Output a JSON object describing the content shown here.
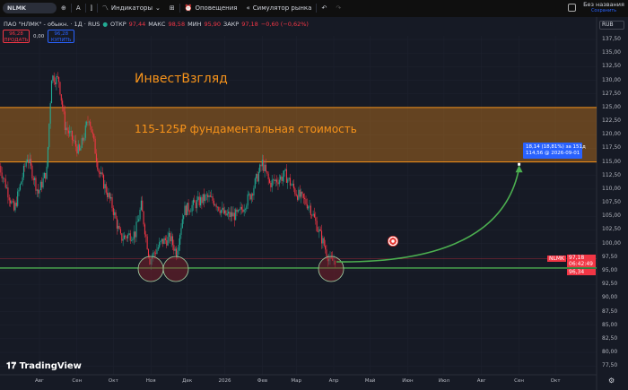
{
  "toolbar": {
    "symbol": "NLMK",
    "indicators": "Индикаторы",
    "alerts": "Оповещения",
    "replay": "Симулятор рынка",
    "layout_name": "Без названия",
    "save": "Сохранить"
  },
  "legend": {
    "title": "ПАО \"НЛМК\" - обыкн. · 1Д · RUS",
    "open_l": "ОТКР",
    "open": "97,44",
    "high_l": "МАКС",
    "high": "98,58",
    "low_l": "МИН",
    "low": "95,90",
    "close_l": "ЗАКР",
    "close": "97,18",
    "change": "−0,60 (−0,62%)"
  },
  "trade": {
    "sell_price": "96,28",
    "sell": "ПРОДАТЬ",
    "spread": "0,00",
    "buy_price": "96,28",
    "buy": "КУПИТЬ"
  },
  "currency": "RUB",
  "price_axis": [
    "137,50",
    "135,00",
    "132,50",
    "130,00",
    "127,50",
    "125,00",
    "122,50",
    "120,00",
    "117,50",
    "115,00",
    "112,50",
    "110,00",
    "107,50",
    "105,00",
    "102,50",
    "100,00",
    "97,50",
    "95,00",
    "92,50",
    "90,00",
    "87,50",
    "85,00",
    "82,50",
    "80,00",
    "77,50"
  ],
  "time_axis": [
    {
      "label": "Авг",
      "date": "2025-08-01"
    },
    {
      "label": "Сен",
      "date": "2025-09-01"
    },
    {
      "label": "Окт",
      "date": "2025-10-01"
    },
    {
      "label": "Ноя",
      "date": "2025-11-01"
    },
    {
      "label": "Дек",
      "date": "2025-12-01"
    },
    {
      "label": "2026",
      "date": "2026-01-01"
    },
    {
      "label": "Фев",
      "date": "2026-02-01"
    },
    {
      "label": "Мар",
      "date": "2026-03-01"
    },
    {
      "label": "Апр",
      "date": "2026-04-01"
    },
    {
      "label": "Май",
      "date": "2026-05-01"
    },
    {
      "label": "Июн",
      "date": "2026-06-01"
    },
    {
      "label": "Июл",
      "date": "2026-07-01"
    },
    {
      "label": "Авг",
      "date": "2026-08-01"
    },
    {
      "label": "Сен",
      "date": "2026-09-01"
    },
    {
      "label": "Окт",
      "date": "2026-10-01"
    }
  ],
  "price_labels": {
    "symbol": "NLMK",
    "last": "97,18",
    "countdown": "06:42:49",
    "bid": "96,34"
  },
  "annotations": {
    "brand": "ИнвестВзгляд",
    "zone_text": "115-125₽ фундаментальная стоимость",
    "zone": [
      115,
      125
    ],
    "support": 95.5,
    "projection_line1": "18,14 (18,81%) за 151д",
    "projection_line2": "114,56 @ 2026-09-01",
    "projection_target": 114.56,
    "projection_date": "2026-09-01"
  },
  "colors": {
    "up": "#22ab94",
    "down": "#f23645",
    "zone": "#f7931a",
    "support": "#4caf50",
    "projection": "#2962ff"
  },
  "chart_data": {
    "type": "candlestick",
    "ylim": [
      76,
      139
    ],
    "price_path": [
      [
        "2025-06-29",
        114.3
      ],
      [
        "2025-07-11",
        106
      ],
      [
        "2025-07-22",
        116
      ],
      [
        "2025-07-31",
        109.3
      ],
      [
        "2025-08-07",
        113.4
      ],
      [
        "2025-08-11",
        130.7
      ],
      [
        "2025-08-17",
        130
      ],
      [
        "2025-08-22",
        121.7
      ],
      [
        "2025-09-03",
        116.7
      ],
      [
        "2025-09-11",
        123.3
      ],
      [
        "2025-09-19",
        113.4
      ],
      [
        "2025-09-30",
        106.9
      ],
      [
        "2025-10-07",
        101
      ],
      [
        "2025-10-19",
        101.9
      ],
      [
        "2025-10-24",
        106.9
      ],
      [
        "2025-10-31",
        97
      ],
      [
        "2025-11-10",
        100.3
      ],
      [
        "2025-11-17",
        101
      ],
      [
        "2025-11-22",
        98.3
      ],
      [
        "2025-11-28",
        106
      ],
      [
        "2025-12-17",
        108.5
      ],
      [
        "2025-12-24",
        107.7
      ],
      [
        "2026-01-01",
        105.2
      ],
      [
        "2026-01-12",
        105.2
      ],
      [
        "2026-01-23",
        109.3
      ],
      [
        "2026-02-01",
        114.8
      ],
      [
        "2026-02-07",
        111
      ],
      [
        "2026-02-14",
        111.8
      ],
      [
        "2026-02-20",
        112.6
      ],
      [
        "2026-03-01",
        109.3
      ],
      [
        "2026-03-12",
        106.9
      ],
      [
        "2026-03-23",
        100.3
      ],
      [
        "2026-03-29",
        96.6
      ],
      [
        "2026-04-03",
        97.18
      ]
    ]
  },
  "watermark": "TradingView"
}
